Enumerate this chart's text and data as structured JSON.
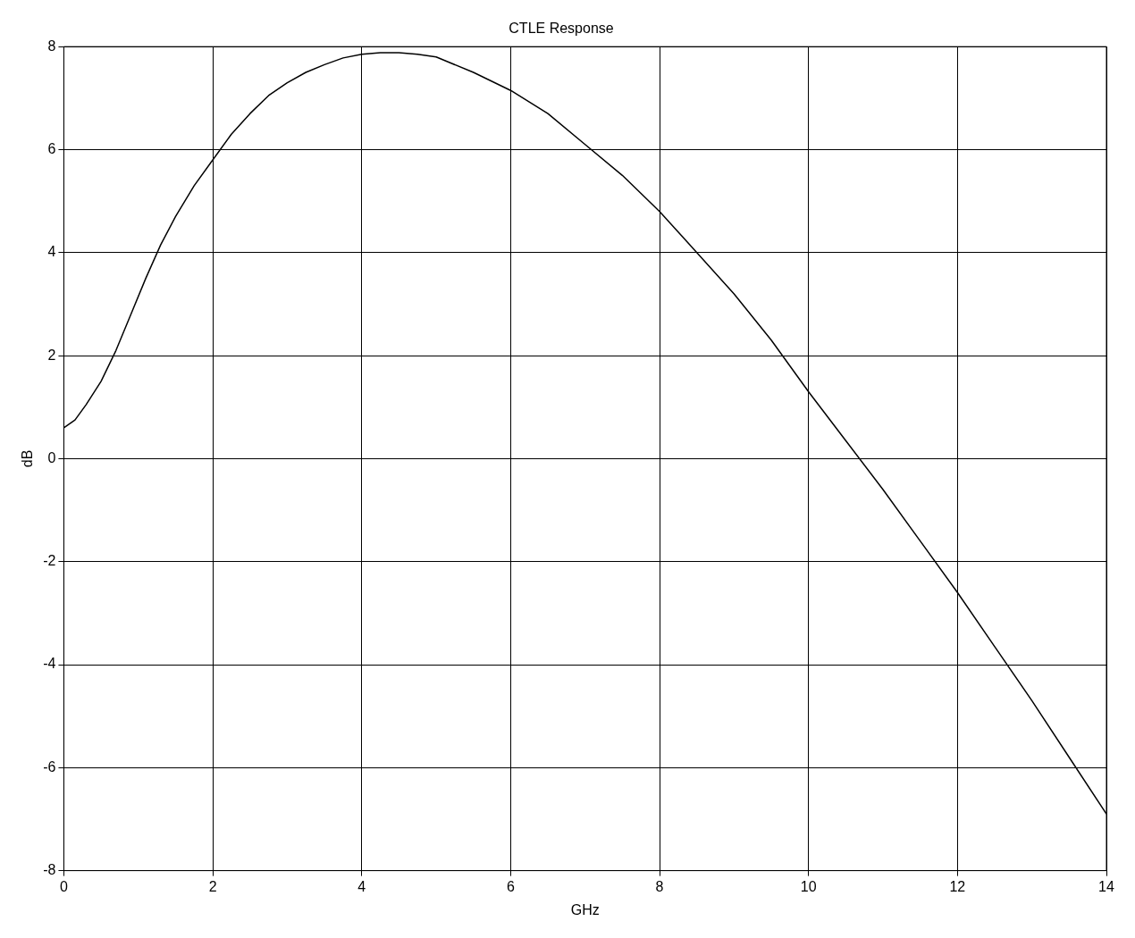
{
  "chart_data": {
    "type": "line",
    "title": "CTLE Response",
    "xlabel": "GHz",
    "ylabel": "dB",
    "x": [
      0,
      0.15,
      0.3,
      0.5,
      0.7,
      0.9,
      1.1,
      1.3,
      1.5,
      1.75,
      2,
      2.25,
      2.5,
      2.75,
      3,
      3.25,
      3.5,
      3.75,
      4,
      4.25,
      4.5,
      4.75,
      5,
      5.5,
      6,
      6.5,
      7,
      7.5,
      8,
      8.5,
      9,
      9.5,
      10,
      10.5,
      11,
      11.5,
      12,
      12.5,
      13,
      13.5,
      14
    ],
    "series": [
      {
        "color": "#000000",
        "values": [
          0.6,
          0.75,
          1.05,
          1.5,
          2.1,
          2.8,
          3.5,
          4.15,
          4.7,
          5.3,
          5.8,
          6.3,
          6.7,
          7.05,
          7.3,
          7.5,
          7.65,
          7.78,
          7.85,
          7.88,
          7.88,
          7.85,
          7.8,
          7.5,
          7.15,
          6.7,
          6.1,
          5.5,
          4.8,
          4.0,
          3.2,
          2.3,
          1.3,
          0.35,
          -0.6,
          -1.6,
          -2.6,
          -3.65,
          -4.7,
          -5.8,
          -6.9
        ]
      }
    ],
    "xlim": [
      0,
      14
    ],
    "xticks": [
      0,
      2,
      4,
      6,
      8,
      10,
      12,
      14
    ],
    "ylim": [
      -8,
      8
    ],
    "yticks": [
      -8,
      -6,
      -4,
      -2,
      0,
      2,
      4,
      6,
      8
    ],
    "grid": true,
    "legend": false,
    "marker": "none",
    "line_style": "solid"
  }
}
